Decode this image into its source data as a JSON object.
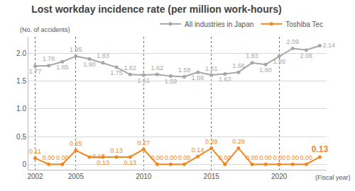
{
  "chart_data": {
    "type": "line",
    "title": "Lost workday incidence rate (per million work-hours)",
    "y_label": "(No. of accidents)",
    "x_label": "(Fiscal year)",
    "x": [
      2002,
      2003,
      2004,
      2005,
      2006,
      2007,
      2008,
      2009,
      2010,
      2011,
      2012,
      2013,
      2014,
      2015,
      2016,
      2017,
      2018,
      2019,
      2020,
      2021,
      2022,
      2023
    ],
    "series": [
      {
        "name": "All industries in Japan",
        "color": "#a6a6a6",
        "values": [
          1.77,
          1.78,
          1.85,
          1.95,
          1.9,
          1.83,
          1.75,
          1.62,
          1.61,
          1.62,
          1.59,
          1.58,
          1.66,
          1.61,
          1.63,
          1.66,
          1.83,
          1.8,
          1.95,
          2.09,
          2.06,
          2.14
        ],
        "value_labels": [
          "1.77",
          "1.78",
          "1.85",
          "1.95",
          "1.90",
          "1.83",
          "1.75",
          "1.62",
          "1.61",
          "1.62",
          "1.59",
          "1.58",
          "1.66",
          "1.61",
          "1.63",
          "1.66",
          "1.83",
          "1.80",
          "1.95",
          "2.09",
          "2.06",
          "2.14"
        ]
      },
      {
        "name": "Toshiba Tec",
        "color": "#f0871e",
        "values": [
          0.11,
          0,
          0,
          0.25,
          0.13,
          0.13,
          0.13,
          0.13,
          0.27,
          0,
          0,
          0,
          0.14,
          0.29,
          0,
          0.29,
          0,
          0,
          0,
          0,
          0,
          0.13
        ],
        "value_labels": [
          "0.11",
          "0.00",
          "0.00",
          "0.25",
          "0.13",
          "0.13",
          "0.13",
          "0.13",
          "0.27",
          "0.00",
          "0.00",
          "0.00",
          "0.14",
          "0.29",
          "0.00",
          "0.29",
          "0.00",
          "0.00",
          "0.00",
          "0.00",
          "0.00",
          "0.13"
        ]
      }
    ],
    "xlim": [
      2001.5,
      2023.5
    ],
    "xticks": [
      2002,
      2005,
      2010,
      2015,
      2020
    ],
    "ylim": [
      -0.1,
      2.3
    ],
    "yticks": [
      0,
      0.5,
      {
        "value": 1,
        "label": "1.0"
      },
      1.5,
      {
        "value": 2,
        "label": "2.0"
      }
    ],
    "grid": true,
    "legend": "top right",
    "data_labels": true,
    "marker": "circle"
  }
}
